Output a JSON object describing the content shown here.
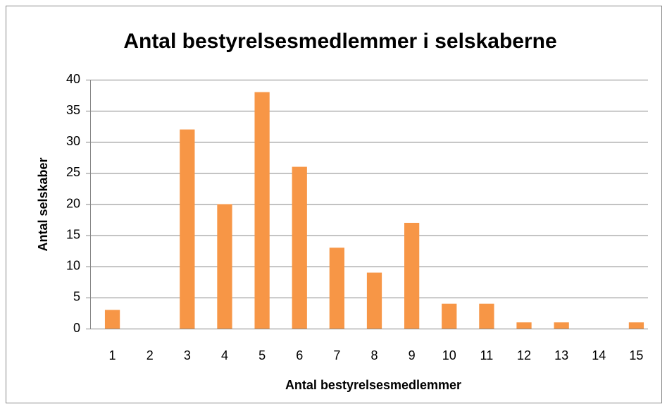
{
  "chart_data": {
    "type": "bar",
    "title": "Antal bestyrelsesmedlemmer i selskaberne",
    "x_label": "Antal bestyrelsesmedlemmer",
    "y_label": "Antal selskaber",
    "categories": [
      "1",
      "2",
      "3",
      "4",
      "5",
      "6",
      "7",
      "8",
      "9",
      "10",
      "11",
      "12",
      "13",
      "14",
      "15"
    ],
    "values": [
      3,
      0,
      32,
      20,
      38,
      26,
      13,
      9,
      17,
      4,
      4,
      1,
      1,
      0,
      1
    ],
    "color": "#f79646",
    "ylim": [
      0,
      40
    ],
    "yticks": [
      0,
      5,
      10,
      15,
      20,
      25,
      30,
      35,
      40
    ],
    "grid": true
  }
}
